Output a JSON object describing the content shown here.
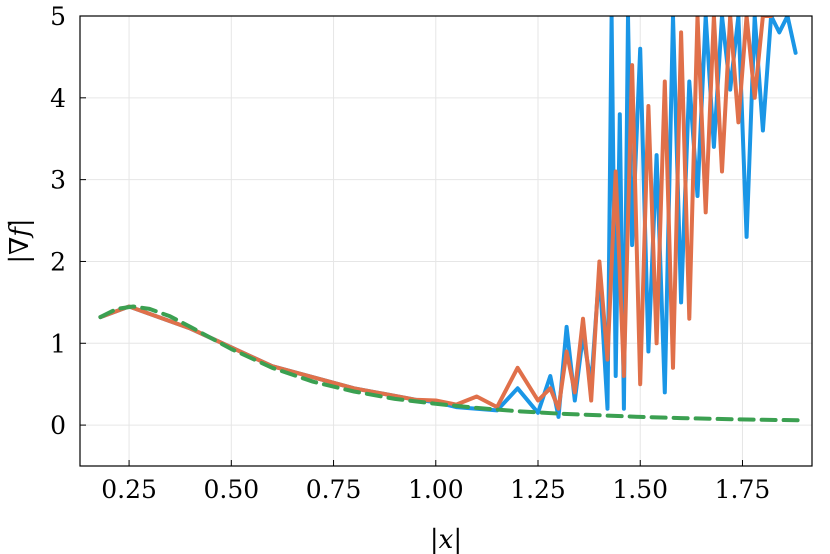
{
  "chart_data": {
    "type": "line",
    "title": "",
    "xlabel": "|x|",
    "ylabel": "|∇f|",
    "xlim": [
      0.13,
      1.92
    ],
    "ylim": [
      -0.5,
      5
    ],
    "x_ticks": [
      0.25,
      0.5,
      0.75,
      1.0,
      1.25,
      1.5,
      1.75
    ],
    "x_tick_labels": [
      "0.25",
      "0.50",
      "0.75",
      "1.00",
      "1.25",
      "1.50",
      "1.75"
    ],
    "y_ticks": [
      0,
      1,
      2,
      3,
      4,
      5
    ],
    "y_tick_labels": [
      "0",
      "1",
      "2",
      "3",
      "4",
      "5"
    ],
    "grid": true,
    "legend": "none",
    "series": [
      {
        "color": "#1a96e6",
        "style": "solid",
        "x": [
          0.18,
          0.25,
          0.4,
          0.6,
          0.8,
          0.95,
          1.0,
          1.05,
          1.1,
          1.15,
          1.2,
          1.25,
          1.28,
          1.3,
          1.32,
          1.34,
          1.36,
          1.38,
          1.4,
          1.42,
          1.43,
          1.44,
          1.45,
          1.46,
          1.47,
          1.48,
          1.5,
          1.52,
          1.54,
          1.56,
          1.58,
          1.6,
          1.62,
          1.64,
          1.66,
          1.68,
          1.7,
          1.72,
          1.74,
          1.76,
          1.78,
          1.8,
          1.82,
          1.84,
          1.86,
          1.88
        ],
        "y": [
          1.32,
          1.45,
          1.18,
          0.72,
          0.45,
          0.31,
          0.28,
          0.22,
          0.2,
          0.18,
          0.45,
          0.15,
          0.6,
          0.1,
          1.2,
          0.3,
          1.1,
          0.5,
          1.9,
          0.2,
          5.0,
          0.6,
          3.8,
          0.2,
          5.0,
          2.2,
          4.6,
          0.9,
          3.3,
          0.4,
          5.0,
          1.5,
          4.2,
          2.8,
          5.0,
          3.4,
          5.0,
          4.1,
          5.0,
          2.3,
          5.0,
          3.6,
          5.0,
          4.8,
          5.0,
          4.55
        ]
      },
      {
        "color": "#e0704a",
        "style": "solid",
        "x": [
          0.18,
          0.25,
          0.4,
          0.6,
          0.8,
          0.95,
          1.0,
          1.05,
          1.1,
          1.15,
          1.2,
          1.25,
          1.28,
          1.3,
          1.32,
          1.34,
          1.36,
          1.38,
          1.4,
          1.42,
          1.44,
          1.46,
          1.48,
          1.5,
          1.52,
          1.54,
          1.56,
          1.58,
          1.6,
          1.62,
          1.64,
          1.66,
          1.68,
          1.7,
          1.72,
          1.74,
          1.76,
          1.78,
          1.8,
          1.82
        ],
        "y": [
          1.32,
          1.45,
          1.18,
          0.72,
          0.45,
          0.31,
          0.3,
          0.25,
          0.35,
          0.22,
          0.7,
          0.3,
          0.45,
          0.2,
          0.9,
          0.4,
          1.3,
          0.3,
          2.0,
          0.8,
          3.1,
          0.6,
          4.4,
          0.5,
          3.9,
          1.0,
          4.2,
          0.7,
          4.8,
          1.3,
          5.0,
          2.6,
          5.0,
          3.1,
          5.0,
          3.7,
          5.0,
          4.0,
          5.0,
          5.0
        ]
      },
      {
        "color": "#3ba051",
        "style": "dashed",
        "x": [
          0.18,
          0.22,
          0.26,
          0.3,
          0.35,
          0.4,
          0.5,
          0.6,
          0.7,
          0.8,
          0.9,
          1.0,
          1.1,
          1.2,
          1.3,
          1.4,
          1.5,
          1.6,
          1.7,
          1.8,
          1.9
        ],
        "y": [
          1.32,
          1.42,
          1.45,
          1.42,
          1.33,
          1.2,
          0.93,
          0.7,
          0.53,
          0.41,
          0.32,
          0.26,
          0.21,
          0.17,
          0.14,
          0.12,
          0.1,
          0.085,
          0.075,
          0.065,
          0.058
        ]
      }
    ]
  }
}
